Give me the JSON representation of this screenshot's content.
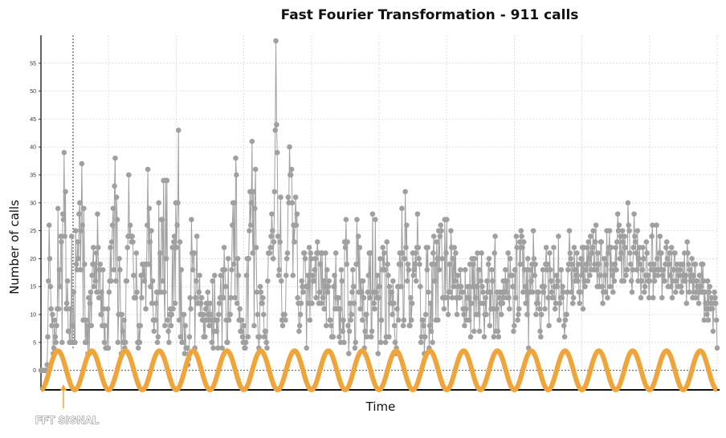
{
  "chart_data": {
    "type": "line",
    "title": "Fast Fourier Transformation - 911 calls",
    "xlabel": "Time",
    "ylabel": "Number of calls",
    "ylim": [
      -3.5,
      60
    ],
    "yticks": [
      0,
      5,
      10,
      15,
      20,
      25,
      30,
      35,
      40,
      45,
      50,
      55
    ],
    "grid": true,
    "colors": {
      "calls": "#a0a0a0",
      "fft": "#f0a53a",
      "grid": "#d8d8d8",
      "axis": "#111111"
    },
    "annotation": {
      "text": "FFT SIGNAL"
    },
    "fft_signal": {
      "amplitude": 3.5,
      "offset": 0,
      "cycles": 20
    },
    "series": [
      {
        "values": [
          0,
          0,
          0,
          0,
          0,
          0,
          0,
          0,
          0,
          1,
          6,
          16,
          26,
          20,
          15,
          11,
          8,
          10,
          3,
          4,
          9,
          6,
          5,
          8,
          11,
          29,
          11,
          18,
          15,
          24,
          23,
          5,
          28,
          27,
          39,
          24,
          32,
          11,
          12,
          16,
          7,
          7,
          5,
          11,
          5,
          24,
          5,
          8,
          14,
          5,
          5,
          25,
          19,
          18,
          23,
          20,
          28,
          30,
          18,
          25,
          37,
          26,
          9,
          29,
          19,
          5,
          9,
          5,
          8,
          3,
          13,
          3,
          12,
          14,
          8,
          17,
          19,
          22,
          15,
          19,
          16,
          21,
          14,
          28,
          22,
          13,
          18,
          19,
          10,
          14,
          8,
          18,
          11,
          5,
          8,
          4,
          4,
          4,
          11,
          4,
          14,
          16,
          22,
          16,
          23,
          26,
          29,
          18,
          33,
          38,
          16,
          31,
          27,
          5,
          10,
          20,
          18,
          10,
          3,
          10,
          7,
          5,
          9,
          4,
          5,
          16,
          16,
          22,
          24,
          35,
          24,
          26,
          24,
          23,
          24,
          23,
          17,
          13,
          13,
          13,
          21,
          14,
          5,
          4,
          8,
          5,
          8,
          17,
          13,
          19,
          17,
          19,
          16,
          19,
          11,
          19,
          26,
          36,
          19,
          29,
          23,
          15,
          25,
          12,
          16,
          9,
          7,
          9,
          9,
          12,
          14,
          5,
          6,
          30,
          14,
          21,
          14,
          27,
          27,
          16,
          34,
          14,
          8,
          34,
          20,
          34,
          9,
          7,
          5,
          10,
          11,
          8,
          10,
          22,
          11,
          23,
          24,
          12,
          30,
          22,
          26,
          30,
          43,
          9,
          23,
          6,
          18,
          5,
          5,
          10,
          10,
          3,
          8,
          4,
          4,
          4,
          1,
          2,
          6,
          13,
          11,
          27,
          21,
          18,
          21,
          21,
          4,
          13,
          16,
          24,
          12,
          12,
          14,
          17,
          10,
          12,
          13,
          9,
          10,
          6,
          9,
          6,
          11,
          12,
          9,
          14,
          10,
          8,
          12,
          10,
          9,
          5,
          16,
          4,
          7,
          17,
          9,
          9,
          7,
          9,
          4,
          10,
          12,
          13,
          17,
          13,
          4,
          18,
          13,
          22,
          18,
          15,
          9,
          5,
          5,
          20,
          9,
          10,
          10,
          13,
          18,
          26,
          30,
          19,
          30,
          13,
          38,
          35,
          12,
          20,
          17,
          9,
          11,
          7,
          7,
          9,
          6,
          5,
          8,
          4,
          4,
          5,
          17,
          20,
          6,
          20,
          25,
          32,
          26,
          30,
          41,
          21,
          32,
          8,
          29,
          36,
          22,
          14,
          10,
          6,
          4,
          6,
          15,
          14,
          12,
          12,
          13,
          10,
          6,
          7,
          7,
          5,
          4,
          16,
          21,
          21,
          21,
          22,
          24,
          28,
          25,
          20,
          23,
          32,
          43,
          59,
          44,
          39,
          24,
          17,
          18,
          23,
          31,
          16,
          9,
          8,
          10,
          10,
          10,
          9,
          17,
          20,
          21,
          31,
          30,
          40,
          35,
          35,
          36,
          30,
          17,
          26,
          23,
          26,
          31,
          26,
          28,
          13,
          12,
          7,
          8,
          10,
          12,
          16,
          15,
          14,
          21,
          21,
          20,
          15,
          4,
          15,
          17,
          12,
          22,
          9,
          21,
          20,
          12,
          17,
          16,
          16,
          18,
          20,
          13,
          21,
          23,
          21,
          12,
          14,
          19,
          21,
          12,
          21,
          13,
          16,
          11,
          15,
          21,
          8,
          18,
          14,
          15,
          16,
          9,
          9,
          8,
          6,
          6,
          6,
          15,
          17,
          11,
          21,
          13,
          11,
          13,
          13,
          6,
          11,
          5,
          18,
          16,
          7,
          9,
          5,
          23,
          22,
          27,
          19,
          23,
          8,
          3,
          7,
          12,
          9,
          10,
          14,
          18,
          15,
          12,
          4,
          5,
          19,
          27,
          19,
          24,
          14,
          22,
          11,
          16,
          14,
          9,
          16,
          13,
          4,
          7,
          10,
          10,
          6,
          14,
          17,
          21,
          13,
          21,
          6,
          7,
          28,
          14,
          12,
          11,
          27,
          14,
          13,
          17,
          3,
          13,
          15,
          20,
          5,
          9,
          18,
          22,
          18,
          21,
          18,
          5,
          6,
          23,
          19,
          17,
          6,
          15,
          12,
          14,
          14,
          10,
          16,
          12,
          8,
          5,
          3,
          4,
          11,
          15,
          9,
          19,
          21,
          19,
          15,
          29,
          21,
          8,
          9,
          20,
          32,
          22,
          26,
          16,
          19,
          18,
          8,
          8,
          13,
          9,
          12,
          21,
          17,
          18,
          19,
          21,
          16,
          22,
          28,
          22,
          20,
          19,
          15,
          5,
          6,
          9,
          9,
          8,
          3,
          6,
          10,
          22,
          18,
          22,
          14,
          4,
          8,
          12,
          7,
          19,
          5,
          21,
          24,
          16,
          19,
          9,
          23,
          20,
          9,
          25,
          18,
          24,
          26,
          25,
          20,
          13,
          13,
          11,
          27,
          13,
          21,
          27,
          13,
          10,
          14,
          19,
          14,
          25,
          22,
          13,
          20,
          15,
          22,
          16,
          21,
          13,
          10,
          17,
          15,
          13,
          13,
          18,
          15,
          14,
          14,
          11,
          10,
          8,
          18,
          11,
          9,
          13,
          15,
          13,
          9,
          19,
          6,
          12,
          20,
          15,
          19,
          7,
          20,
          13,
          10,
          15,
          21,
          10,
          18,
          7,
          12,
          16,
          21,
          15,
          14,
          12,
          6,
          10,
          13,
          10,
          16,
          14,
          19,
          20,
          8,
          14,
          11,
          18,
          16,
          11,
          6,
          21,
          24,
          7,
          11,
          14,
          7,
          6,
          13,
          14,
          12,
          10,
          14,
          12,
          16,
          13,
          14,
          18,
          14,
          16,
          13,
          21,
          13,
          11,
          20,
          17,
          17,
          17,
          15,
          7,
          8,
          18,
          13,
          24,
          22,
          9,
          10,
          11,
          23,
          19,
          25,
          24,
          22,
          14,
          23,
          18,
          15,
          12,
          18,
          10,
          20,
          4,
          14,
          18,
          14,
          16,
          19,
          14,
          25,
          20,
          17,
          19,
          10,
          12,
          14,
          12,
          14,
          11,
          7,
          6,
          10,
          15,
          18,
          14,
          15,
          11,
          19,
          22,
          18,
          19,
          13,
          8,
          21,
          18,
          16,
          14,
          13,
          13,
          22,
          15,
          11,
          12,
          17,
          15,
          16,
          24,
          9,
          12,
          13,
          18,
          13,
          15,
          14,
          8,
          6,
          9,
          10,
          10,
          14,
          18,
          19,
          25,
          21,
          20,
          14,
          19,
          12,
          13,
          22,
          18,
          16,
          17,
          21,
          16,
          19,
          14,
          12,
          14,
          20,
          17,
          22,
          11,
          22,
          16,
          15,
          18,
          19,
          22,
          16,
          23,
          20,
          17,
          24,
          18,
          21,
          22,
          25,
          18,
          19,
          23,
          26,
          18,
          15,
          21,
          19,
          15,
          17,
          23,
          23,
          15,
          12,
          14,
          20,
          17,
          14,
          19,
          25,
          13,
          21,
          22,
          25,
          15,
          22,
          18,
          17,
          14,
          19,
          16,
          19,
          22,
          18,
          23,
          28,
          25,
          26,
          20,
          24,
          21,
          16,
          25,
          23,
          16,
          24,
          22,
          17,
          18,
          18,
          30,
          26,
          25,
          21,
          19,
          16,
          14,
          18,
          22,
          28,
          24,
          23,
          21,
          18,
          25,
          16,
          20,
          22,
          19,
          13,
          16,
          18,
          22,
          20,
          14,
          15,
          17,
          23,
          21,
          16,
          17,
          13,
          16,
          19,
          18,
          24,
          26,
          13,
          19,
          16,
          17,
          18,
          26,
          20,
          17,
          18,
          21,
          24,
          18,
          21,
          13,
          17,
          18,
          16,
          16,
          19,
          22,
          23,
          20,
          15,
          19,
          21,
          17,
          15,
          22,
          13,
          16,
          18,
          21,
          21,
          14,
          16,
          19,
          18,
          15,
          17,
          18,
          19,
          15,
          14,
          19,
          17,
          16,
          21,
          16,
          17,
          12,
          23,
          21,
          19,
          14,
          18,
          16,
          17,
          20,
          13,
          17,
          14,
          19,
          19,
          13,
          16,
          15,
          14,
          12,
          17,
          14,
          15,
          19,
          14,
          19,
          16,
          9,
          14,
          12,
          11,
          10,
          16,
          9,
          14,
          15,
          11,
          12,
          13,
          11,
          7,
          12,
          14,
          13,
          12,
          9,
          4
        ]
      }
    ]
  }
}
